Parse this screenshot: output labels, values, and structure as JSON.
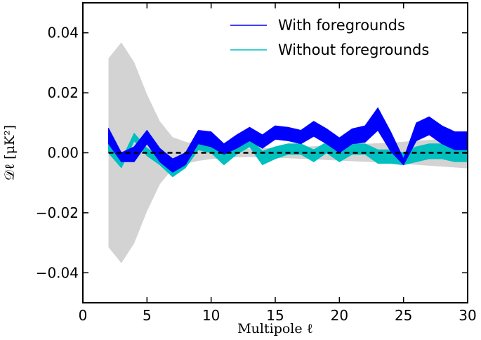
{
  "chart_data": {
    "type": "area",
    "xlabel": "Multipole ℓ",
    "ylabel": "𝒟ℓ  [μK²]",
    "xlim": [
      0,
      30
    ],
    "ylim": [
      -0.05,
      0.05
    ],
    "xticks": [
      "0",
      "5",
      "10",
      "15",
      "20",
      "25",
      "30"
    ],
    "yticks": [
      "0.04",
      "0.02",
      "0.00",
      "−0.02",
      "−0.04"
    ],
    "grid": false,
    "legend_placement": "top-right",
    "colors": {
      "with_foregrounds": "#0000ff",
      "without_foregrounds": "#00bfbf",
      "cosmic_variance_band": "#d3d3d3",
      "zero_line": "#000000"
    },
    "x": [
      2,
      3,
      4,
      5,
      6,
      7,
      8,
      9,
      10,
      11,
      12,
      13,
      14,
      15,
      16,
      17,
      18,
      19,
      20,
      21,
      22,
      23,
      24,
      25,
      26,
      27,
      28,
      29,
      30
    ],
    "gray_band": {
      "upper": [
        0.0315,
        0.0368,
        0.0302,
        0.0195,
        0.0105,
        0.0052,
        0.0037,
        0.0027,
        0.0021,
        0.0017,
        0.0015,
        0.0014,
        0.0015,
        0.0017,
        0.0018,
        0.002,
        0.0022,
        0.0024,
        0.0026,
        0.0028,
        0.003,
        0.0032,
        0.0034,
        0.0037,
        0.004,
        0.0043,
        0.0046,
        0.0049,
        0.0052
      ],
      "lower": [
        -0.0315,
        -0.0368,
        -0.0302,
        -0.0195,
        -0.0105,
        -0.0052,
        -0.0037,
        -0.0027,
        -0.0021,
        -0.0017,
        -0.0015,
        -0.0014,
        -0.0015,
        -0.0017,
        -0.0018,
        -0.002,
        -0.0022,
        -0.0024,
        -0.0026,
        -0.0028,
        -0.003,
        -0.0032,
        -0.0034,
        -0.0037,
        -0.004,
        -0.0043,
        -0.0046,
        -0.0049,
        -0.0052
      ]
    },
    "series": [
      {
        "name": "Without foregrounds",
        "upper": [
          0.0035,
          -0.0025,
          0.0065,
          0.0015,
          -0.001,
          -0.005,
          -0.002,
          0.004,
          0.0025,
          -0.0005,
          0.0025,
          0.005,
          0.0005,
          0.002,
          0.003,
          0.003,
          0.001,
          0.0035,
          0.001,
          0.003,
          0.003,
          0.001,
          0.001,
          0.0,
          0.002,
          0.003,
          0.003,
          0.0015,
          0.001
        ],
        "lower": [
          0.0,
          -0.005,
          0.004,
          -0.001,
          -0.004,
          -0.008,
          -0.005,
          0.001,
          0.0,
          -0.004,
          -0.0005,
          0.002,
          -0.004,
          -0.002,
          -0.0005,
          -0.0005,
          -0.003,
          0.0,
          -0.003,
          -0.0005,
          -0.0005,
          -0.0035,
          -0.0035,
          -0.004,
          -0.003,
          -0.002,
          -0.002,
          -0.003,
          -0.003
        ]
      },
      {
        "name": "With foregrounds",
        "upper": [
          0.0082,
          0.0,
          0.002,
          0.0075,
          0.0015,
          -0.002,
          0.0,
          0.0075,
          0.007,
          0.003,
          0.006,
          0.0085,
          0.006,
          0.009,
          0.0085,
          0.0075,
          0.0105,
          0.008,
          0.005,
          0.008,
          0.009,
          0.015,
          0.007,
          -0.002,
          0.01,
          0.012,
          0.009,
          0.007,
          0.007
        ],
        "lower": [
          0.003,
          -0.003,
          -0.003,
          0.003,
          -0.003,
          -0.0065,
          -0.004,
          0.003,
          0.002,
          -0.0005,
          0.0015,
          0.004,
          0.0015,
          0.0045,
          0.004,
          0.003,
          0.0055,
          0.003,
          0.0,
          0.003,
          0.0035,
          0.0075,
          0.0005,
          -0.004,
          0.004,
          0.006,
          0.003,
          0.001,
          0.001
        ]
      }
    ]
  }
}
